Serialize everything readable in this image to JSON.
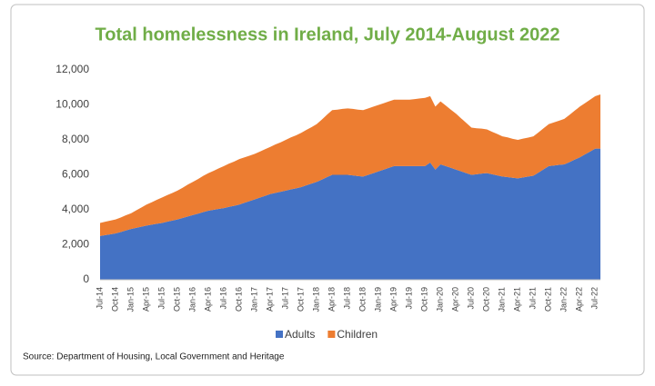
{
  "chart_data": {
    "type": "stacked-area",
    "title": "Total homelessness in Ireland, July 2014-August 2022",
    "source": "Source: Department of Housing, Local Government and Heritage",
    "categories": [
      "Jul-14",
      null,
      null,
      "Oct-14",
      null,
      null,
      "Jan-15",
      null,
      null,
      "Apr-15",
      null,
      null,
      "Jul-15",
      null,
      null,
      "Oct-15",
      null,
      null,
      "Jan-16",
      null,
      null,
      "Apr-16",
      null,
      null,
      "Jul-16",
      null,
      null,
      "Oct-16",
      null,
      null,
      "Jan-17",
      null,
      null,
      "Apr-17",
      null,
      null,
      "Jul-17",
      null,
      null,
      "Oct-17",
      null,
      null,
      "Jan-18",
      null,
      null,
      "Apr-18",
      null,
      null,
      "Jul-18",
      null,
      null,
      "Oct-18",
      null,
      null,
      "Jan-19",
      null,
      null,
      "Apr-19",
      null,
      null,
      "Jul-19",
      null,
      null,
      "Oct-19",
      null,
      null,
      "Jan-20",
      null,
      null,
      "Apr-20",
      null,
      null,
      "Jul-20",
      null,
      null,
      "Oct-20",
      null,
      null,
      "Jan-21",
      null,
      null,
      "Apr-21",
      null,
      null,
      "Jul-21",
      null,
      null,
      "Oct-21",
      null,
      null,
      "Jan-22",
      null,
      null,
      "Apr-22",
      null,
      null,
      "Jul-22",
      null
    ],
    "series": [
      {
        "name": "Adults",
        "color": "#4472c4",
        "values": [
          2500,
          2550,
          2600,
          2650,
          2730,
          2820,
          2900,
          2970,
          3030,
          3100,
          3150,
          3200,
          3250,
          3320,
          3380,
          3450,
          3530,
          3620,
          3700,
          3780,
          3870,
          3950,
          4000,
          4050,
          4100,
          4170,
          4230,
          4300,
          4400,
          4500,
          4600,
          4700,
          4800,
          4900,
          4970,
          5030,
          5100,
          5170,
          5230,
          5300,
          5400,
          5500,
          5600,
          5730,
          5870,
          6000,
          6000,
          6000,
          6000,
          5970,
          5930,
          5900,
          6000,
          6100,
          6200,
          6300,
          6400,
          6500,
          6500,
          6500,
          6500,
          6500,
          6500,
          6500,
          6700,
          6300,
          6600,
          6500,
          6400,
          6300,
          6200,
          6100,
          6000,
          6030,
          6070,
          6100,
          6030,
          5970,
          5900,
          5870,
          5830,
          5800,
          5850,
          5900,
          5950,
          6130,
          6320,
          6500,
          6530,
          6570,
          6600,
          6730,
          6870,
          7000,
          7170,
          7330,
          7500,
          7500
        ]
      },
      {
        "name": "Children",
        "color": "#ed7d31",
        "values": [
          750,
          770,
          780,
          800,
          830,
          870,
          900,
          1000,
          1100,
          1200,
          1280,
          1370,
          1450,
          1520,
          1580,
          1650,
          1730,
          1820,
          1900,
          1980,
          2070,
          2150,
          2230,
          2320,
          2400,
          2470,
          2530,
          2600,
          2600,
          2600,
          2600,
          2630,
          2670,
          2700,
          2770,
          2830,
          2900,
          2970,
          3030,
          3100,
          3170,
          3230,
          3300,
          3430,
          3570,
          3700,
          3730,
          3770,
          3800,
          3800,
          3800,
          3800,
          3800,
          3800,
          3800,
          3800,
          3800,
          3800,
          3800,
          3800,
          3800,
          3830,
          3870,
          3900,
          3800,
          3600,
          3600,
          3470,
          3330,
          3200,
          3030,
          2870,
          2700,
          2630,
          2570,
          2500,
          2430,
          2370,
          2300,
          2270,
          2230,
          2200,
          2220,
          2230,
          2250,
          2300,
          2350,
          2400,
          2470,
          2530,
          2600,
          2700,
          2800,
          2900,
          2930,
          2970,
          3000,
          3100
        ]
      }
    ],
    "ylim": [
      0,
      12000
    ],
    "yticks": [
      0,
      {
        "value": 2000,
        "label": "2,000"
      },
      {
        "value": 4000,
        "label": "4,000"
      },
      {
        "value": 6000,
        "label": "6,000"
      },
      {
        "value": 8000,
        "label": "8,000"
      },
      {
        "value": 10000,
        "label": "10,000"
      },
      {
        "value": 12000,
        "label": "12,000"
      }
    ],
    "legend": "bottom"
  }
}
